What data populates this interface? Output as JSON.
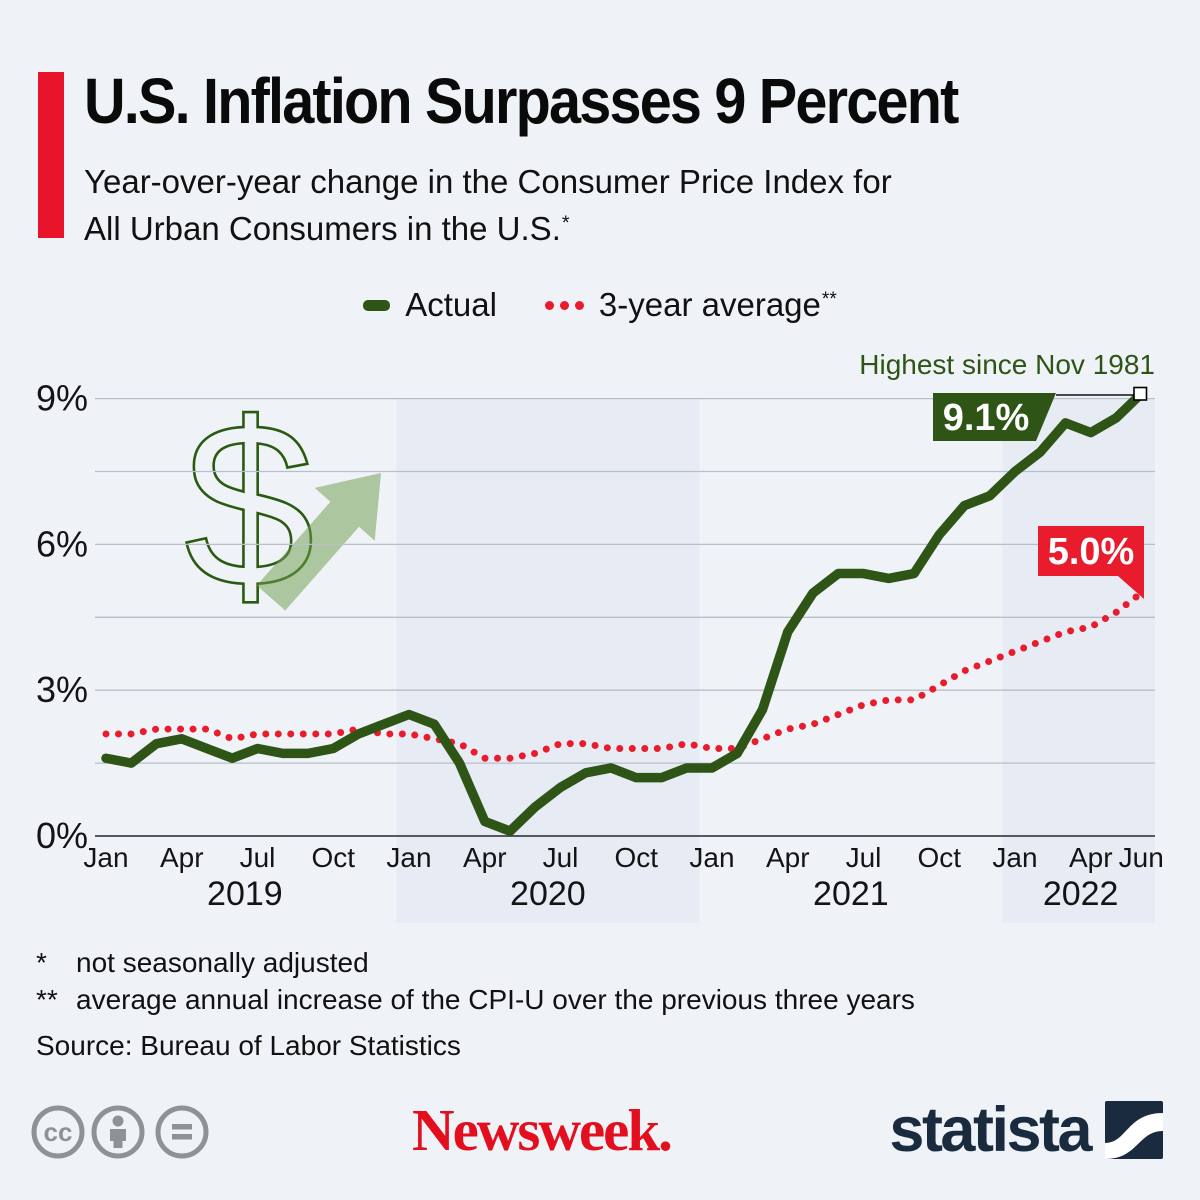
{
  "header": {
    "title": "U.S. Inflation Surpasses 9 Percent",
    "subtitle_line1": "Year-over-year change in the Consumer Price Index for",
    "subtitle_line2": "All Urban Consumers in the U.S.",
    "subtitle_footnote_mark": "*",
    "accent_color": "#e8142b"
  },
  "legend": {
    "actual_label": "Actual",
    "average_label": "3-year average",
    "average_footnote_mark": "**"
  },
  "chart_data": {
    "type": "line",
    "title": "U.S. Inflation Surpasses 9 Percent",
    "xlabel": "",
    "ylabel": "",
    "unit": "percent",
    "ylim": [
      0,
      9.3
    ],
    "yticks": [
      0,
      3,
      6,
      9
    ],
    "ytick_labels": [
      "0%",
      "3%",
      "6%",
      "9%"
    ],
    "gridline_step_pct": 1.5,
    "grid": "horizontal-only",
    "legend_position": "top-center",
    "x_months": [
      "2019-01",
      "2019-02",
      "2019-03",
      "2019-04",
      "2019-05",
      "2019-06",
      "2019-07",
      "2019-08",
      "2019-09",
      "2019-10",
      "2019-11",
      "2019-12",
      "2020-01",
      "2020-02",
      "2020-03",
      "2020-04",
      "2020-05",
      "2020-06",
      "2020-07",
      "2020-08",
      "2020-09",
      "2020-10",
      "2020-11",
      "2020-12",
      "2021-01",
      "2021-02",
      "2021-03",
      "2021-04",
      "2021-05",
      "2021-06",
      "2021-07",
      "2021-08",
      "2021-09",
      "2021-10",
      "2021-11",
      "2021-12",
      "2022-01",
      "2022-02",
      "2022-03",
      "2022-04",
      "2022-05",
      "2022-06"
    ],
    "series": [
      {
        "name": "Actual",
        "color": "#2e5516",
        "line_style": "solid",
        "values": [
          1.6,
          1.5,
          1.9,
          2.0,
          1.8,
          1.6,
          1.8,
          1.7,
          1.7,
          1.8,
          2.1,
          2.3,
          2.5,
          2.3,
          1.5,
          0.3,
          0.1,
          0.6,
          1.0,
          1.3,
          1.4,
          1.2,
          1.2,
          1.4,
          1.4,
          1.7,
          2.6,
          4.2,
          5.0,
          5.4,
          5.4,
          5.3,
          5.4,
          6.2,
          6.8,
          7.0,
          7.5,
          7.9,
          8.5,
          8.3,
          8.6,
          9.1
        ]
      },
      {
        "name": "3-year average",
        "color": "#e81c2c",
        "line_style": "dotted",
        "values": [
          2.1,
          2.1,
          2.2,
          2.2,
          2.2,
          2.0,
          2.1,
          2.1,
          2.1,
          2.1,
          2.2,
          2.1,
          2.1,
          2.0,
          1.9,
          1.6,
          1.6,
          1.7,
          1.9,
          1.9,
          1.8,
          1.8,
          1.8,
          1.9,
          1.8,
          1.8,
          2.0,
          2.2,
          2.3,
          2.5,
          2.7,
          2.8,
          2.8,
          3.1,
          3.4,
          3.6,
          3.8,
          4.0,
          4.2,
          4.3,
          4.6,
          5.0
        ]
      }
    ],
    "x_tick_months": [
      {
        "m": 0,
        "label": "Jan"
      },
      {
        "m": 3,
        "label": "Apr"
      },
      {
        "m": 6,
        "label": "Jul"
      },
      {
        "m": 9,
        "label": "Oct"
      },
      {
        "m": 12,
        "label": "Jan"
      },
      {
        "m": 15,
        "label": "Apr"
      },
      {
        "m": 18,
        "label": "Jul"
      },
      {
        "m": 21,
        "label": "Oct"
      },
      {
        "m": 24,
        "label": "Jan"
      },
      {
        "m": 27,
        "label": "Apr"
      },
      {
        "m": 30,
        "label": "Jul"
      },
      {
        "m": 33,
        "label": "Oct"
      },
      {
        "m": 36,
        "label": "Jan"
      },
      {
        "m": 39,
        "label": "Apr"
      },
      {
        "m": 41,
        "label": "Jun"
      }
    ],
    "year_labels": [
      {
        "label": "2019",
        "center_m": 5.5,
        "shaded": false
      },
      {
        "label": "2020",
        "center_m": 17.5,
        "shaded": true
      },
      {
        "label": "2021",
        "center_m": 29.5,
        "shaded": false
      },
      {
        "label": "2022",
        "center_m": 38.6,
        "shaded": true
      }
    ],
    "shaded_bands_m": [
      [
        11.5,
        23.5
      ],
      [
        35.5,
        null
      ]
    ],
    "annotations": {
      "highest_note": "Highest since Nov 1981",
      "actual_final_label": "9.1%",
      "average_final_label": "5.0%"
    },
    "colors": {
      "actual": "#2e5516",
      "average": "#e81c2c",
      "band": "#e6ebf4",
      "grid": "#b9bfc9",
      "axis": "#3f444b",
      "annotation_text": "#2e5516"
    }
  },
  "watermark": {
    "symbol": "$",
    "outline_color": "#2a5a10",
    "arrow_color": "#6f9e4c"
  },
  "footnotes": [
    {
      "mark": "*",
      "text": "not seasonally adjusted"
    },
    {
      "mark": "**",
      "text": "average annual increase of the CPI-U over the previous three years"
    }
  ],
  "source": "Source: Bureau of Labor Statistics",
  "footer": {
    "cc_label": "cc",
    "newsweek_logo_text": "Newsweek.",
    "statista_logo_text": "statista"
  }
}
